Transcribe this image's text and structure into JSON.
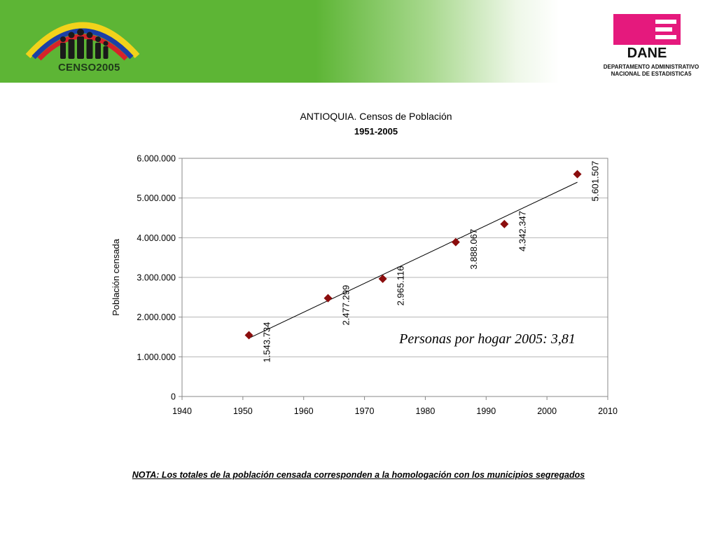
{
  "header": {
    "censo_logo_text": "CENSO2005",
    "dane_logo_text": "DANE",
    "dane_subtitle_line1": "DEPARTAMENTO ADMINISTRATIVO",
    "dane_subtitle_line2": "NACIONAL DE ESTADISTICA5",
    "banner_color": "#5db535",
    "dane_pink": "#e5197d"
  },
  "chart_data": {
    "type": "scatter",
    "title": "ANTIOQUIA. Censos de Población",
    "subtitle": "1951-2005",
    "xlabel": "",
    "ylabel": "Población censada",
    "xlim": [
      1940,
      2010
    ],
    "ylim": [
      0,
      6000000
    ],
    "x_ticks": [
      "1940",
      "1950",
      "1960",
      "1970",
      "1980",
      "1990",
      "2000",
      "2010"
    ],
    "y_ticks": [
      "0",
      "1.000.000",
      "2.000.000",
      "3.000.000",
      "4.000.000",
      "5.000.000",
      "6.000.000"
    ],
    "grid": true,
    "marker": "diamond",
    "marker_color": "#8b0d0d",
    "points": [
      {
        "x": 1951,
        "y": 1543734,
        "label": "1.543.734"
      },
      {
        "x": 1964,
        "y": 2477299,
        "label": "2.477.299"
      },
      {
        "x": 1973,
        "y": 2965116,
        "label": "2.965.116"
      },
      {
        "x": 1985,
        "y": 3888067,
        "label": "3.888.067"
      },
      {
        "x": 1993,
        "y": 4342347,
        "label": "4.342.347"
      },
      {
        "x": 2005,
        "y": 5601507,
        "label": "5.601.507"
      }
    ],
    "trendline": true,
    "annotation": "Personas por hogar 2005: 3,81"
  },
  "note": "NOTA: Los totales de la población censada corresponden a la homologación con los municipios segregados"
}
